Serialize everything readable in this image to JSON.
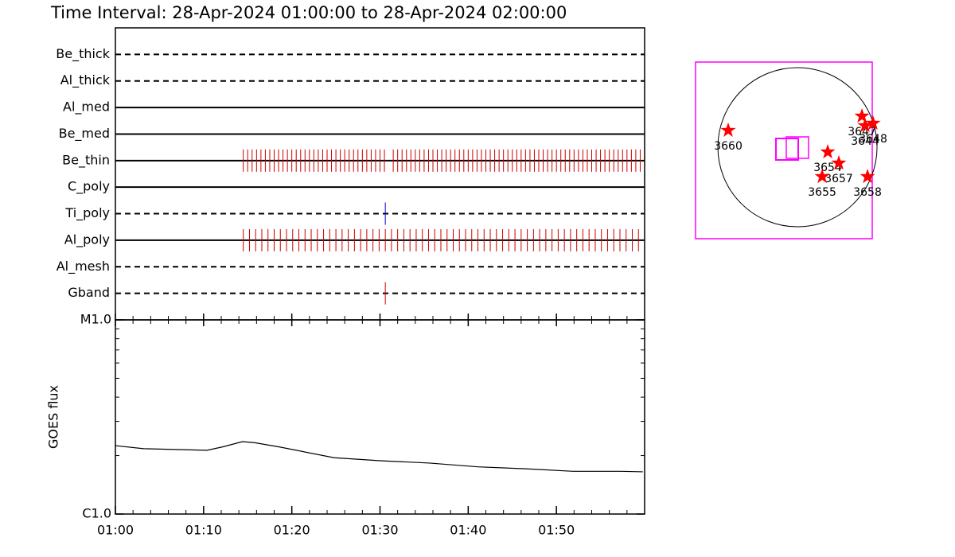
{
  "title": "Time Interval: 28-Apr-2024 01:00:00 to 28-Apr-2024 02:00:00",
  "chart_data": [
    {
      "type": "timeline",
      "xlim": [
        0,
        60
      ],
      "series": [
        {
          "name": "Be_thick",
          "style": "dashed",
          "color": "#cc0000",
          "values": []
        },
        {
          "name": "Al_thick",
          "style": "dashed",
          "color": "#cc0000",
          "values": []
        },
        {
          "name": "Al_med",
          "style": "solid",
          "color": "#cc0000",
          "values": []
        },
        {
          "name": "Be_med",
          "style": "solid",
          "color": "#cc0000",
          "values": []
        },
        {
          "name": "Be_thin",
          "style": "solid",
          "color": "#cc0000",
          "values": [
            14.5,
            15.0,
            15.5,
            16.0,
            16.5,
            17.0,
            17.5,
            18.0,
            18.5,
            19.0,
            19.5,
            20.0,
            20.5,
            21.0,
            21.5,
            22.0,
            22.5,
            23.0,
            23.5,
            24.0,
            24.5,
            25.0,
            25.5,
            26.0,
            26.5,
            27.0,
            27.5,
            28.0,
            28.5,
            29.0,
            29.5,
            30.0,
            30.5,
            31.5,
            32.0,
            32.5,
            33.0,
            33.5,
            34.0,
            34.5,
            35.0,
            35.5,
            36.0,
            36.5,
            37.0,
            37.5,
            38.0,
            38.5,
            39.0,
            39.5,
            40.0,
            40.5,
            41.0,
            41.5,
            42.0,
            42.5,
            43.0,
            43.5,
            44.0,
            44.5,
            45.0,
            45.5,
            46.0,
            46.5,
            47.0,
            47.5,
            48.0,
            48.5,
            49.0,
            49.5,
            50.0,
            50.5,
            51.0,
            51.5,
            52.0,
            52.5,
            53.0,
            53.5,
            54.0,
            54.5,
            55.0,
            55.5,
            56.0,
            56.5,
            57.0,
            57.5,
            58.0,
            58.5,
            59.0,
            59.5
          ]
        },
        {
          "name": "C_poly",
          "style": "solid",
          "color": "#cc0000",
          "values": []
        },
        {
          "name": "Ti_poly",
          "style": "dashed",
          "color": "#0000cc",
          "values": [
            30.6
          ]
        },
        {
          "name": "Al_poly",
          "style": "solid",
          "color": "#cc0000",
          "values": [
            14.5,
            15.2,
            15.9,
            16.6,
            17.3,
            18.0,
            18.7,
            19.4,
            20.1,
            20.8,
            21.5,
            22.2,
            22.9,
            23.6,
            24.3,
            25.0,
            25.7,
            26.4,
            27.1,
            27.8,
            28.5,
            29.2,
            29.9,
            30.6,
            31.3,
            32.0,
            32.7,
            33.4,
            34.1,
            34.8,
            35.5,
            36.2,
            36.9,
            37.6,
            38.3,
            39.0,
            39.7,
            40.4,
            41.1,
            41.8,
            42.5,
            43.2,
            43.9,
            44.6,
            45.3,
            46.0,
            46.7,
            47.4,
            48.1,
            48.8,
            49.5,
            50.2,
            50.9,
            51.6,
            52.3,
            53.0,
            53.7,
            54.4,
            55.1,
            55.8,
            56.5,
            57.2,
            57.9,
            58.6,
            59.3
          ]
        },
        {
          "name": "Al_mesh",
          "style": "dashed",
          "color": "#cc0000",
          "values": []
        },
        {
          "name": "Gband",
          "style": "dashed",
          "color": "#cc0000",
          "values": [
            30.6
          ]
        }
      ]
    },
    {
      "type": "line",
      "ylabel": "GOES flux",
      "log_y": true,
      "color": "#000000",
      "x": [
        0,
        3.2,
        10.4,
        12.2,
        14.4,
        15.8,
        18.5,
        24.8,
        30.2,
        35.6,
        41.1,
        46.5,
        51.9,
        57.3,
        59.8
      ],
      "values": [
        2.25e-06,
        2.17e-06,
        2.13e-06,
        2.22e-06,
        2.36e-06,
        2.33e-06,
        2.22e-06,
        1.95e-06,
        1.88e-06,
        1.83e-06,
        1.75e-06,
        1.71e-06,
        1.66e-06,
        1.66e-06,
        1.65e-06
      ],
      "xlim": [
        0,
        60
      ],
      "xticks": [
        {
          "value": 0,
          "label": "01:00"
        },
        {
          "value": 10,
          "label": "01:10"
        },
        {
          "value": 20,
          "label": "01:20"
        },
        {
          "value": 30,
          "label": "01:30"
        },
        {
          "value": 40,
          "label": "01:40"
        },
        {
          "value": 50,
          "label": "01:50"
        }
      ],
      "ylim": [
        1e-06,
        1e-05
      ],
      "yticks": [
        {
          "value": 1e-06,
          "label": "C1.0"
        },
        {
          "value": 1e-05,
          "label": "M1.0"
        }
      ]
    },
    {
      "type": "map",
      "xlim": [
        -1229,
        902
      ],
      "ylim": [
        -1104,
        1027
      ],
      "disk_radius": 960,
      "color": "#ff0000",
      "regions": [
        {
          "name": "3660",
          "x": -835,
          "y": 202
        },
        {
          "name": "3647",
          "x": 778,
          "y": 374
        },
        {
          "name": "3648",
          "x": 912,
          "y": 288
        },
        {
          "name": "3644",
          "x": 816,
          "y": 259
        },
        {
          "name": "3654",
          "x": 365,
          "y": -58
        },
        {
          "name": "3657",
          "x": 499,
          "y": -192
        },
        {
          "name": "3655",
          "x": 298,
          "y": -355
        },
        {
          "name": "3658",
          "x": 845,
          "y": -355
        }
      ]
    }
  ]
}
